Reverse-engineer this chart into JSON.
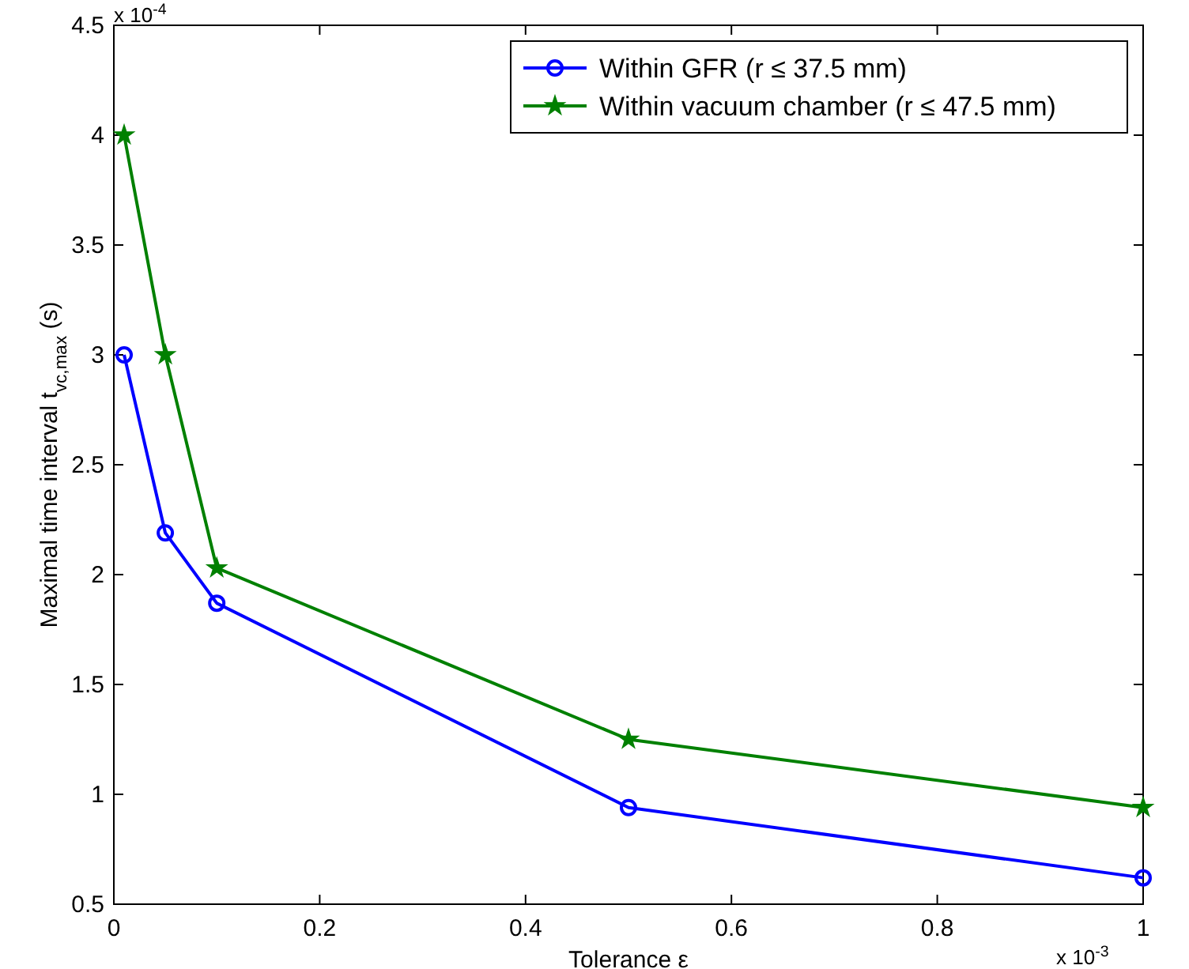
{
  "chart_data": {
    "type": "line",
    "xlabel": "Tolerance ε",
    "ylabel": "Maximal time interval  t$_{vc,max}$ (s)",
    "x": [
      0.01,
      0.05,
      0.1,
      0.5,
      1
    ],
    "series": [
      {
        "name": "Within GFR (r ≤ 37.5 mm)",
        "color": "#0000ff",
        "marker": "circle",
        "values": [
          3.0,
          2.19,
          1.87,
          0.94,
          0.62
        ]
      },
      {
        "name": "Within vacuum chamber (r ≤ 47.5 mm)",
        "color": "#008000",
        "marker": "star",
        "values": [
          4.0,
          3.0,
          2.03,
          1.25,
          0.94
        ]
      }
    ],
    "xlim": [
      0,
      1
    ],
    "xticks": [
      0,
      0.2,
      0.4,
      0.6,
      0.8,
      1
    ],
    "ylim": [
      0.5,
      4.5
    ],
    "yticks": [
      0.5,
      1,
      1.5,
      2,
      2.5,
      3,
      3.5,
      4,
      4.5
    ],
    "annotations": [
      "x 10$^{-4}$",
      "x 10$^{-3}$"
    ],
    "legend": "top right",
    "grid": false,
    "line_style": "solid"
  }
}
